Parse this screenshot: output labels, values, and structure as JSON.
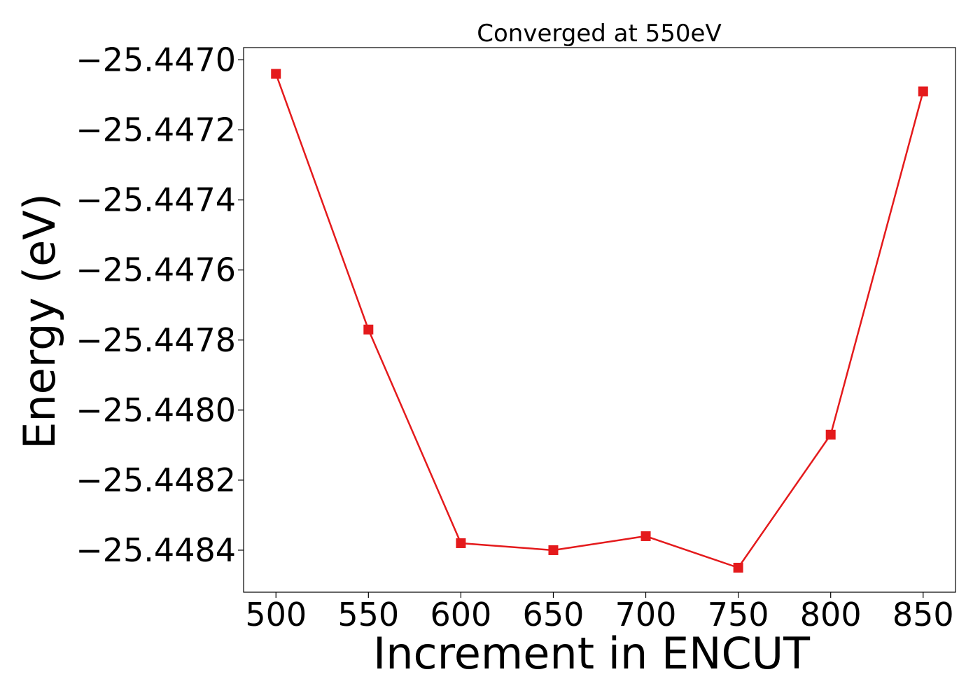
{
  "chart_data": {
    "type": "line",
    "title": "Converged at 550eV",
    "xlabel": "Increment in ENCUT",
    "ylabel": "Energy (eV)",
    "x": [
      500,
      550,
      600,
      650,
      700,
      750,
      800,
      850
    ],
    "series": [
      {
        "values": [
          -25.44704,
          -25.44777,
          -25.44838,
          -25.4484,
          -25.44836,
          -25.44845,
          -25.44807,
          -25.44709
        ],
        "color": "#e41a1c",
        "marker": "square"
      }
    ],
    "xticks": [
      500,
      550,
      600,
      650,
      700,
      750,
      800,
      850
    ],
    "xtick_labels": [
      "500",
      "550",
      "600",
      "650",
      "700",
      "750",
      "800",
      "850"
    ],
    "yticks": [
      -25.447,
      -25.4472,
      -25.4474,
      -25.4476,
      -25.4478,
      -25.448,
      -25.4482,
      -25.4484
    ],
    "ytick_labels": [
      "−25.4470",
      "−25.4472",
      "−25.4474",
      "−25.4476",
      "−25.4478",
      "−25.4480",
      "−25.4482",
      "−25.4484"
    ],
    "xlim": [
      482.5,
      867.5
    ],
    "ylim": [
      -25.44852,
      -25.446965
    ],
    "grid": false,
    "legend": "none"
  }
}
